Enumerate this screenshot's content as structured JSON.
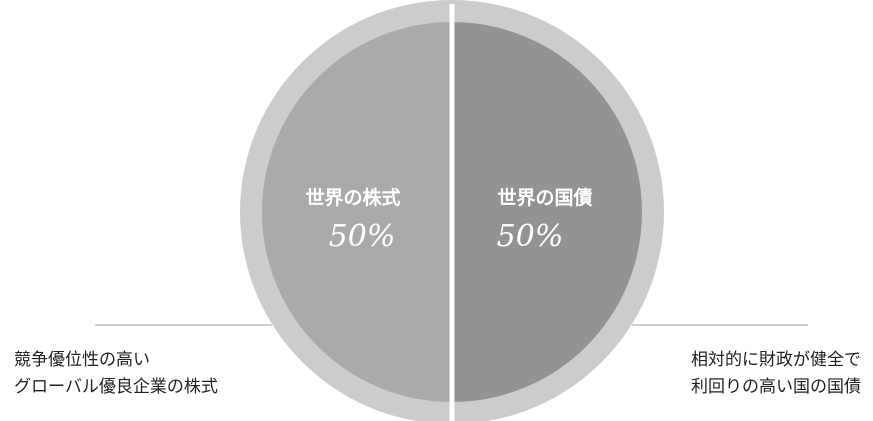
{
  "chart_data": {
    "type": "pie",
    "title": "",
    "slices": [
      {
        "label": "世界の株式",
        "value": 50,
        "value_label": "50%",
        "color": "#aaaaaa",
        "description": [
          "競争優位性の高い",
          "グローバル優良企業の株式"
        ]
      },
      {
        "label": "世界の国債",
        "value": 50,
        "value_label": "50%",
        "color": "#939393",
        "description": [
          "相対的に財政が健全で",
          "利回りの高い国の国債"
        ]
      }
    ],
    "colors": {
      "outer_ring": "#cccccc",
      "divider": "#ffffff",
      "pointer_line": "#cfcfcf"
    }
  }
}
